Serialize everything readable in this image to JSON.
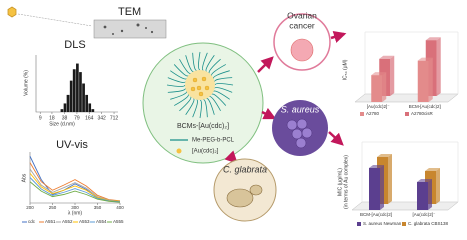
{
  "tem": {
    "label": "TEM"
  },
  "dls": {
    "title": "DLS",
    "x_label": "Size (d.nm)",
    "y_label": "Volume (%)",
    "log_x": true,
    "xlim": [
      7,
      900
    ],
    "xticks": [
      9,
      18,
      38,
      79,
      164,
      342,
      712
    ],
    "ylim": [
      0,
      20
    ],
    "bins": [
      30,
      36,
      43,
      52,
      62,
      75,
      90,
      108,
      130,
      156,
      187,
      225
    ],
    "values": [
      1,
      3,
      6,
      11,
      15,
      17,
      14,
      10,
      6,
      3,
      1
    ],
    "color": "#1a1a1a"
  },
  "uvvis": {
    "title": "UV-vis",
    "x_label": "λ (nm)",
    "y_label": "Abs",
    "x": [
      200,
      225,
      250,
      275,
      300,
      325,
      350,
      375,
      400
    ],
    "xlim": [
      200,
      400
    ],
    "xticks": [
      200,
      250,
      300,
      350,
      400
    ],
    "ylim": [
      0,
      1.2
    ],
    "series": [
      {
        "name": "cdc",
        "color": "#4472c4",
        "values": [
          1.1,
          0.55,
          0.2,
          0.3,
          0.45,
          0.32,
          0.12,
          0.05,
          0.03
        ]
      },
      {
        "name": "A551",
        "color": "#ed7d31",
        "values": [
          0.95,
          0.5,
          0.3,
          0.42,
          0.55,
          0.4,
          0.18,
          0.08,
          0.05
        ]
      },
      {
        "name": "A552",
        "color": "#a5a5a5",
        "values": [
          0.8,
          0.42,
          0.25,
          0.36,
          0.48,
          0.35,
          0.15,
          0.07,
          0.04
        ]
      },
      {
        "name": "A553",
        "color": "#ffc000",
        "values": [
          0.7,
          0.38,
          0.22,
          0.3,
          0.4,
          0.3,
          0.13,
          0.06,
          0.04
        ]
      },
      {
        "name": "A554",
        "color": "#5b9bd5",
        "values": [
          0.6,
          0.33,
          0.18,
          0.25,
          0.34,
          0.25,
          0.11,
          0.05,
          0.03
        ]
      },
      {
        "name": "A555",
        "color": "#70ad47",
        "values": [
          0.5,
          0.28,
          0.15,
          0.2,
          0.28,
          0.2,
          0.09,
          0.04,
          0.02
        ]
      }
    ]
  },
  "center": {
    "micelle_label": "BCMs-[Au(cdc)₂]",
    "polymer_label": "Me-PEG-b-PCL",
    "complex_label": "[Au(cdc)₂]"
  },
  "targets": {
    "ovarian": [
      "Ovarian",
      "cancer"
    ],
    "bacteria": "S. aureus",
    "yeast": "C. glabrata"
  },
  "ic50": {
    "y_label": "IC₅₀ (μM)",
    "categories": [
      "[Au(cdc)2]⁻",
      "BCM-[Au(cdc)2]"
    ],
    "ylim": [
      0,
      6
    ],
    "series": [
      {
        "name": "A2780",
        "color": "#e38b8b",
        "values": [
          2.6,
          4.0
        ]
      },
      {
        "name": "A2780cisR",
        "color": "#d9707a",
        "values": [
          3.6,
          5.4
        ]
      }
    ]
  },
  "mic": {
    "y_label": [
      "MIC (μg/mL)",
      "(in terms of Au complex)"
    ],
    "categories": [
      "BCM-[Au(cdc)2]",
      "[Au(cdc)2]⁻"
    ],
    "ylim": [
      0,
      6
    ],
    "series": [
      {
        "name": "S. aureus Newman",
        "color": "#5b3f8f",
        "values": [
          4.2,
          2.8
        ]
      },
      {
        "name": "C. glabrata CBS138",
        "color": "#c8862e",
        "values": [
          4.7,
          3.3
        ]
      }
    ]
  }
}
